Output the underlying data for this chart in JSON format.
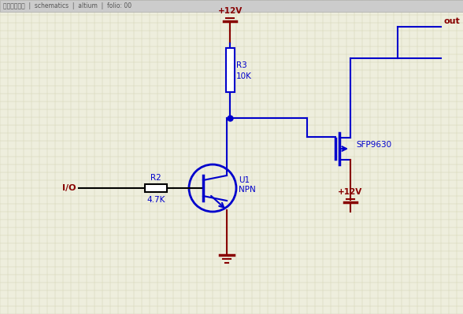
{
  "bg_color": "#eeeedd",
  "grid_color": "#d0d0b0",
  "wire_color": "#0000cc",
  "label_color": "#880000",
  "title_bar_bg": "#cccccc",
  "title_bar_text": "全飛電子論壇  |  schematics  |  altium  |  folio: 00",
  "io_label": "I/O",
  "r2_label": "R2",
  "r2_val": "4.7K",
  "r3_label": "R3",
  "r3_val": "10K",
  "u1_label": "U1",
  "u1_type": "NPN",
  "mosfet_label": "SFP9630",
  "vcc_label": "+12V",
  "out_label": "out",
  "figw": 5.88,
  "figh": 3.99,
  "dpi": 100
}
